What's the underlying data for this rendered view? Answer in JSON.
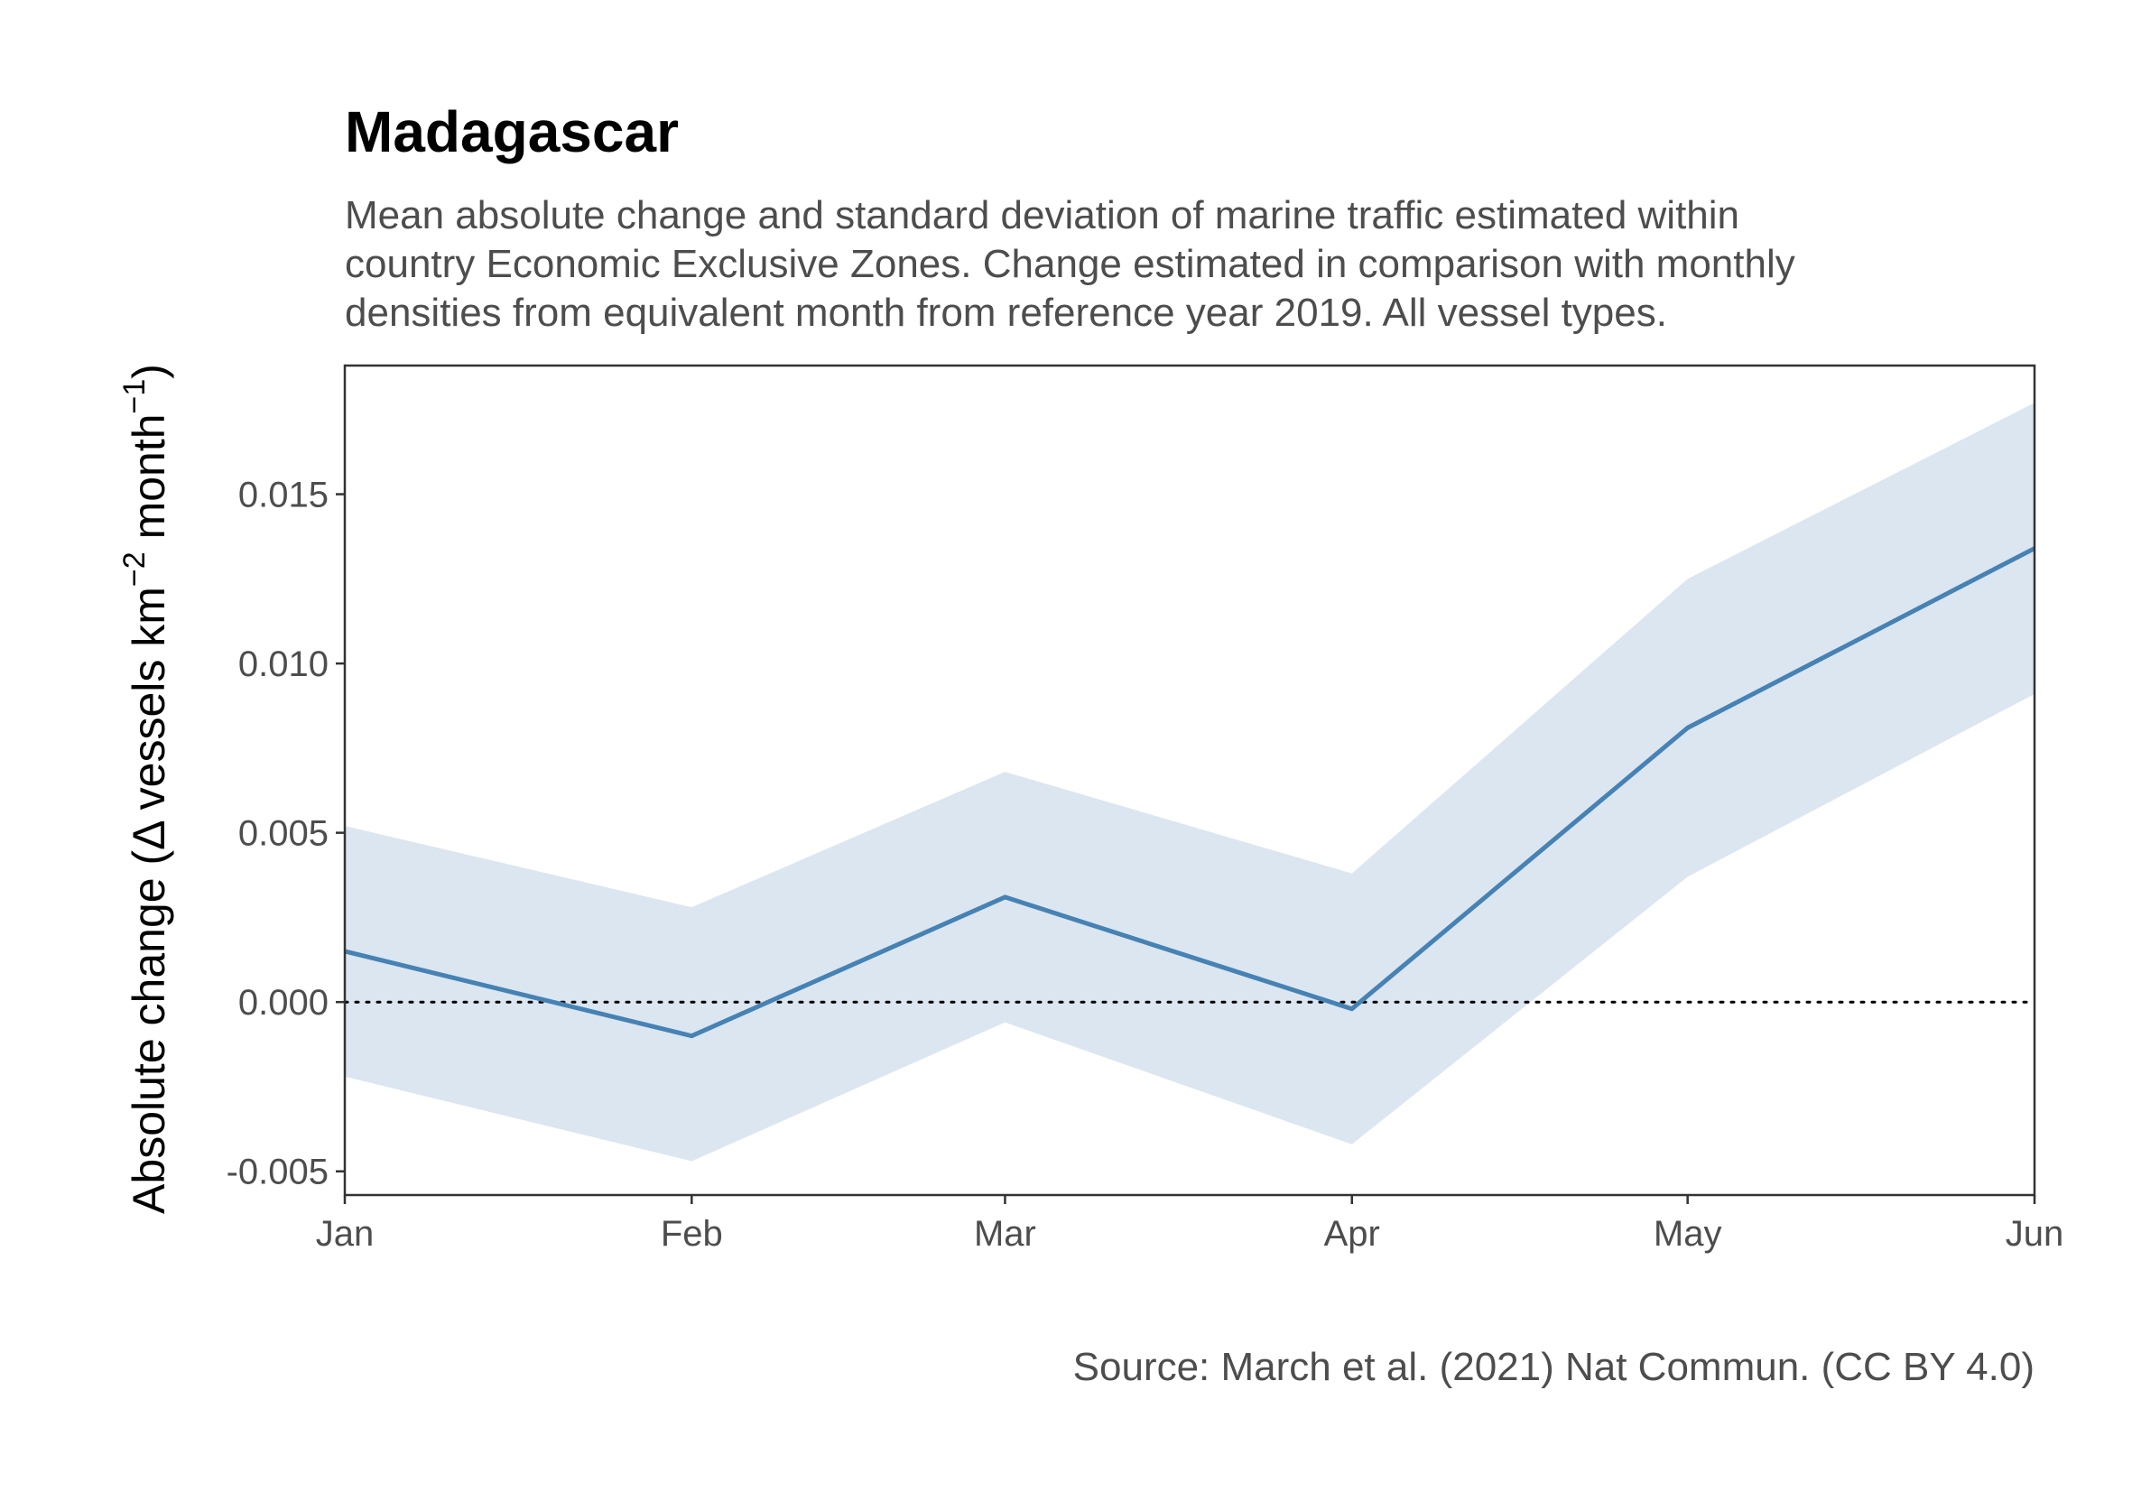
{
  "chart_data": {
    "type": "line",
    "title": "Madagascar",
    "subtitle_lines": [
      "Mean absolute change and standard deviation of marine traffic estimated within",
      "country Economic Exclusive Zones. Change estimated in comparison with monthly",
      "densities from equivalent month from reference year 2019. All vessel types."
    ],
    "ylabel": {
      "prefix": "Absolute change (",
      "delta": "Δ",
      "vessels": " vessels km",
      "exp1": "−2",
      "month": " month",
      "exp2": "−1",
      "suffix": ")"
    },
    "xlabel": "",
    "caption": "Source: March et al. (2021) Nat Commun. (CC BY 4.0)",
    "categories": [
      "Jan",
      "Feb",
      "Mar",
      "Apr",
      "May",
      "Jun"
    ],
    "x_values": [
      1,
      2,
      3,
      4,
      5,
      6
    ],
    "x_day_offsets": [
      0,
      31,
      59,
      90,
      120,
      151
    ],
    "series": [
      {
        "values": [
          0.0015,
          -0.001,
          0.0031,
          -0.0002,
          0.0081,
          0.0134
        ],
        "lower": [
          -0.0022,
          -0.0047,
          -0.0006,
          -0.0042,
          0.0037,
          0.0091
        ],
        "upper": [
          0.0052,
          0.0028,
          0.0068,
          0.0038,
          0.0125,
          0.0177
        ],
        "color": "#4682b4",
        "band_color": "#dce6f0"
      }
    ],
    "yticks": [
      -0.005,
      0.0,
      0.005,
      0.01,
      0.015
    ],
    "ytick_labels": [
      "-0.005",
      "0.000",
      "0.005",
      "0.010",
      "0.015"
    ],
    "ylim": [
      -0.0057,
      0.0188
    ],
    "reference_line": {
      "y": 0.0,
      "style": "dotted",
      "color": "#000000"
    },
    "grid": false,
    "legend": "none"
  }
}
